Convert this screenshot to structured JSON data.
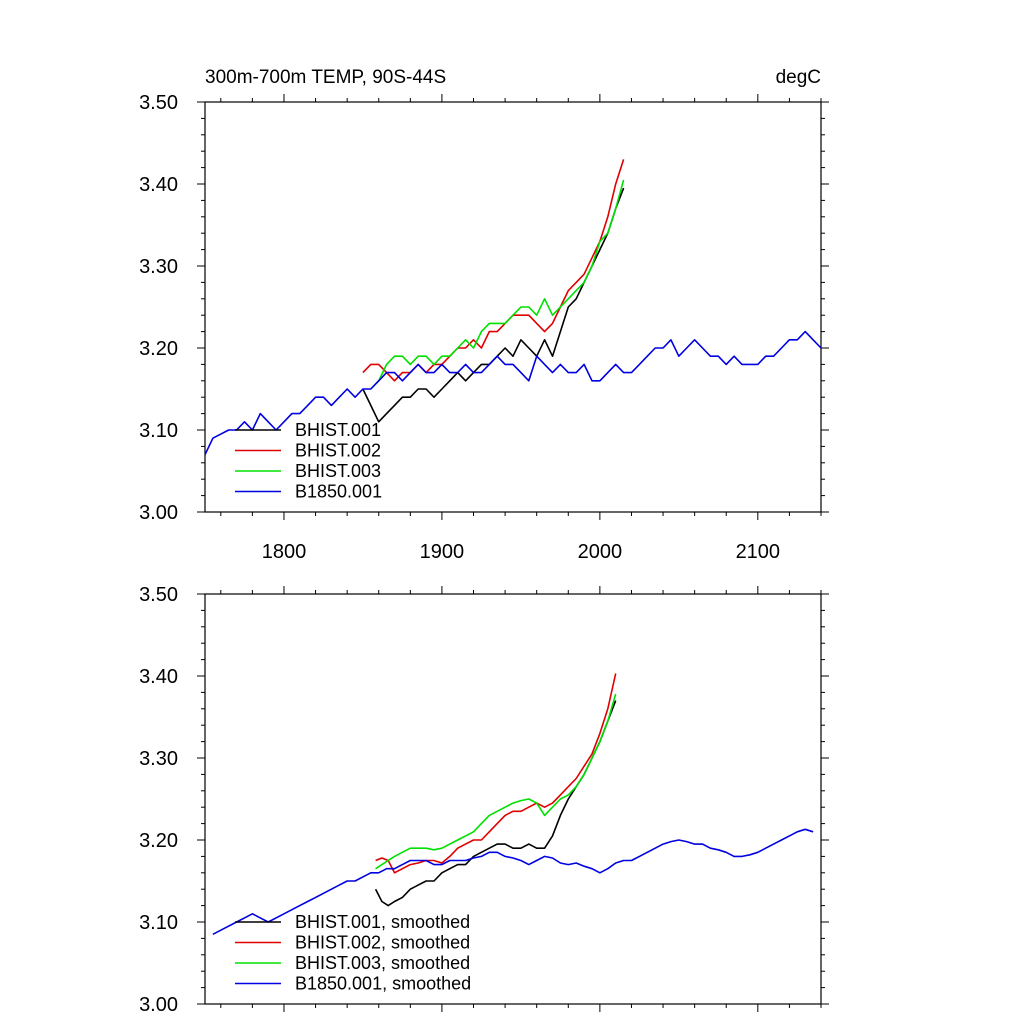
{
  "header": {
    "title": "300m-700m TEMP, 90S-44S",
    "units": "degC"
  },
  "colors": {
    "BHIST.001": "#000000",
    "BHIST.002": "#e00000",
    "BHIST.003": "#00e000",
    "B1850.001": "#0000e0"
  },
  "chart_data": [
    {
      "type": "line",
      "title": "300m-700m TEMP, 90S-44S",
      "units": "degC",
      "xlim": [
        1750,
        2140
      ],
      "ylim": [
        3.0,
        3.5
      ],
      "xticks": [
        1800,
        1900,
        2000,
        2100
      ],
      "xtick_labels": [
        "1800",
        "1900",
        "2000",
        "2100"
      ],
      "yticks": [
        3.0,
        3.1,
        3.2,
        3.3,
        3.4,
        3.5
      ],
      "ytick_labels": [
        "3.00",
        "3.10",
        "3.20",
        "3.30",
        "3.40",
        "3.50"
      ],
      "grid": false,
      "legend_position": "bottom-left",
      "series": [
        {
          "name": "BHIST.001",
          "color": "#000000",
          "x": [
            1850,
            1855,
            1860,
            1865,
            1870,
            1875,
            1880,
            1885,
            1890,
            1895,
            1900,
            1905,
            1910,
            1915,
            1920,
            1925,
            1930,
            1935,
            1940,
            1945,
            1950,
            1955,
            1960,
            1965,
            1970,
            1975,
            1980,
            1985,
            1990,
            1995,
            2000,
            2005,
            2010,
            2015
          ],
          "y": [
            3.15,
            3.13,
            3.11,
            3.12,
            3.13,
            3.14,
            3.14,
            3.15,
            3.15,
            3.14,
            3.15,
            3.16,
            3.17,
            3.16,
            3.17,
            3.18,
            3.18,
            3.19,
            3.2,
            3.19,
            3.21,
            3.2,
            3.19,
            3.21,
            3.19,
            3.22,
            3.25,
            3.26,
            3.28,
            3.3,
            3.32,
            3.34,
            3.37,
            3.395
          ]
        },
        {
          "name": "BHIST.002",
          "color": "#e00000",
          "x": [
            1850,
            1855,
            1860,
            1865,
            1870,
            1875,
            1880,
            1885,
            1890,
            1895,
            1900,
            1905,
            1910,
            1915,
            1920,
            1925,
            1930,
            1935,
            1940,
            1945,
            1950,
            1955,
            1960,
            1965,
            1970,
            1975,
            1980,
            1985,
            1990,
            1995,
            2000,
            2005,
            2010,
            2015
          ],
          "y": [
            3.17,
            3.18,
            3.18,
            3.17,
            3.16,
            3.17,
            3.17,
            3.18,
            3.17,
            3.18,
            3.18,
            3.19,
            3.2,
            3.2,
            3.21,
            3.2,
            3.22,
            3.22,
            3.23,
            3.24,
            3.24,
            3.24,
            3.23,
            3.22,
            3.23,
            3.25,
            3.27,
            3.28,
            3.29,
            3.31,
            3.33,
            3.36,
            3.4,
            3.43
          ]
        },
        {
          "name": "BHIST.003",
          "color": "#00e000",
          "x": [
            1855,
            1860,
            1865,
            1870,
            1875,
            1880,
            1885,
            1890,
            1895,
            1900,
            1905,
            1910,
            1915,
            1920,
            1925,
            1930,
            1935,
            1940,
            1945,
            1950,
            1955,
            1960,
            1965,
            1970,
            1975,
            1980,
            1985,
            1990,
            1995,
            2000,
            2005,
            2010,
            2015
          ],
          "y": [
            3.15,
            3.16,
            3.18,
            3.19,
            3.19,
            3.18,
            3.19,
            3.19,
            3.18,
            3.19,
            3.19,
            3.2,
            3.21,
            3.2,
            3.22,
            3.23,
            3.23,
            3.23,
            3.24,
            3.25,
            3.25,
            3.24,
            3.26,
            3.24,
            3.25,
            3.26,
            3.27,
            3.28,
            3.3,
            3.33,
            3.34,
            3.37,
            3.405
          ]
        },
        {
          "name": "B1850.001",
          "color": "#0000e0",
          "x": [
            1750,
            1755,
            1760,
            1765,
            1770,
            1775,
            1780,
            1785,
            1790,
            1795,
            1800,
            1805,
            1810,
            1815,
            1820,
            1825,
            1830,
            1835,
            1840,
            1845,
            1850,
            1855,
            1860,
            1865,
            1870,
            1875,
            1880,
            1885,
            1890,
            1895,
            1900,
            1905,
            1910,
            1915,
            1920,
            1925,
            1930,
            1935,
            1940,
            1945,
            1950,
            1955,
            1960,
            1965,
            1970,
            1975,
            1980,
            1985,
            1990,
            1995,
            2000,
            2005,
            2010,
            2015,
            2020,
            2025,
            2030,
            2035,
            2040,
            2045,
            2050,
            2055,
            2060,
            2065,
            2070,
            2075,
            2080,
            2085,
            2090,
            2095,
            2100,
            2105,
            2110,
            2115,
            2120,
            2125,
            2130,
            2135,
            2140
          ],
          "y": [
            3.07,
            3.09,
            3.095,
            3.1,
            3.1,
            3.11,
            3.1,
            3.12,
            3.11,
            3.1,
            3.11,
            3.12,
            3.12,
            3.13,
            3.14,
            3.14,
            3.13,
            3.14,
            3.15,
            3.14,
            3.15,
            3.15,
            3.16,
            3.17,
            3.17,
            3.16,
            3.17,
            3.18,
            3.17,
            3.17,
            3.18,
            3.17,
            3.17,
            3.18,
            3.17,
            3.17,
            3.18,
            3.19,
            3.18,
            3.18,
            3.17,
            3.16,
            3.19,
            3.18,
            3.17,
            3.18,
            3.17,
            3.17,
            3.18,
            3.16,
            3.16,
            3.17,
            3.18,
            3.17,
            3.17,
            3.18,
            3.19,
            3.2,
            3.2,
            3.21,
            3.19,
            3.2,
            3.21,
            3.2,
            3.19,
            3.19,
            3.18,
            3.19,
            3.18,
            3.18,
            3.18,
            3.19,
            3.19,
            3.2,
            3.21,
            3.21,
            3.22,
            3.21,
            3.2
          ]
        }
      ]
    },
    {
      "type": "line",
      "xlim": [
        1750,
        2140
      ],
      "ylim": [
        3.0,
        3.5
      ],
      "yticks": [
        3.0,
        3.1,
        3.2,
        3.3,
        3.4,
        3.5
      ],
      "ytick_labels": [
        "3.00",
        "3.10",
        "3.20",
        "3.30",
        "3.40",
        "3.50"
      ],
      "grid": false,
      "legend_position": "bottom-left",
      "series": [
        {
          "name": "BHIST.001, smoothed",
          "color": "#000000",
          "x": [
            1858,
            1862,
            1866,
            1870,
            1875,
            1880,
            1885,
            1890,
            1895,
            1900,
            1905,
            1910,
            1915,
            1920,
            1925,
            1930,
            1935,
            1940,
            1945,
            1950,
            1955,
            1960,
            1965,
            1970,
            1975,
            1980,
            1985,
            1990,
            1995,
            2000,
            2005,
            2010
          ],
          "y": [
            3.14,
            3.125,
            3.12,
            3.125,
            3.13,
            3.14,
            3.145,
            3.15,
            3.15,
            3.16,
            3.165,
            3.17,
            3.17,
            3.18,
            3.185,
            3.19,
            3.195,
            3.195,
            3.19,
            3.19,
            3.195,
            3.19,
            3.19,
            3.205,
            3.23,
            3.25,
            3.265,
            3.28,
            3.3,
            3.32,
            3.345,
            3.37
          ]
        },
        {
          "name": "BHIST.002, smoothed",
          "color": "#e00000",
          "x": [
            1858,
            1862,
            1866,
            1870,
            1875,
            1880,
            1885,
            1890,
            1895,
            1900,
            1905,
            1910,
            1915,
            1920,
            1925,
            1930,
            1935,
            1940,
            1945,
            1950,
            1955,
            1960,
            1965,
            1970,
            1975,
            1980,
            1985,
            1990,
            1995,
            2000,
            2005,
            2010
          ],
          "y": [
            3.175,
            3.178,
            3.175,
            3.16,
            3.165,
            3.17,
            3.172,
            3.175,
            3.175,
            3.172,
            3.18,
            3.19,
            3.195,
            3.2,
            3.2,
            3.21,
            3.22,
            3.23,
            3.235,
            3.235,
            3.24,
            3.245,
            3.24,
            3.245,
            3.255,
            3.265,
            3.275,
            3.29,
            3.305,
            3.33,
            3.36,
            3.403
          ]
        },
        {
          "name": "BHIST.003, smoothed",
          "color": "#00e000",
          "x": [
            1858,
            1862,
            1866,
            1870,
            1875,
            1880,
            1885,
            1890,
            1895,
            1900,
            1905,
            1910,
            1915,
            1920,
            1925,
            1930,
            1935,
            1940,
            1945,
            1950,
            1955,
            1960,
            1965,
            1970,
            1975,
            1980,
            1985,
            1990,
            1995,
            2000,
            2005,
            2010
          ],
          "y": [
            3.165,
            3.17,
            3.175,
            3.18,
            3.185,
            3.19,
            3.19,
            3.19,
            3.188,
            3.19,
            3.195,
            3.2,
            3.205,
            3.21,
            3.22,
            3.23,
            3.235,
            3.24,
            3.245,
            3.248,
            3.25,
            3.245,
            3.23,
            3.24,
            3.25,
            3.255,
            3.265,
            3.28,
            3.3,
            3.32,
            3.345,
            3.378
          ]
        },
        {
          "name": "B1850.001, smoothed",
          "color": "#0000e0",
          "x": [
            1755,
            1760,
            1765,
            1770,
            1775,
            1780,
            1785,
            1790,
            1795,
            1800,
            1805,
            1810,
            1815,
            1820,
            1825,
            1830,
            1835,
            1840,
            1845,
            1850,
            1855,
            1860,
            1865,
            1870,
            1875,
            1880,
            1885,
            1890,
            1895,
            1900,
            1905,
            1910,
            1915,
            1920,
            1925,
            1930,
            1935,
            1940,
            1945,
            1950,
            1955,
            1960,
            1965,
            1970,
            1975,
            1980,
            1985,
            1990,
            1995,
            2000,
            2005,
            2010,
            2015,
            2020,
            2025,
            2030,
            2035,
            2040,
            2045,
            2050,
            2055,
            2060,
            2065,
            2070,
            2075,
            2080,
            2085,
            2090,
            2095,
            2100,
            2105,
            2110,
            2115,
            2120,
            2125,
            2130,
            2135
          ],
          "y": [
            3.085,
            3.09,
            3.095,
            3.1,
            3.105,
            3.11,
            3.105,
            3.1,
            3.105,
            3.11,
            3.115,
            3.12,
            3.125,
            3.13,
            3.135,
            3.14,
            3.145,
            3.15,
            3.15,
            3.155,
            3.16,
            3.16,
            3.165,
            3.165,
            3.17,
            3.175,
            3.175,
            3.175,
            3.17,
            3.17,
            3.175,
            3.175,
            3.175,
            3.178,
            3.18,
            3.185,
            3.185,
            3.18,
            3.178,
            3.175,
            3.17,
            3.175,
            3.18,
            3.178,
            3.172,
            3.17,
            3.172,
            3.168,
            3.165,
            3.16,
            3.165,
            3.172,
            3.175,
            3.175,
            3.18,
            3.185,
            3.19,
            3.195,
            3.198,
            3.2,
            3.198,
            3.195,
            3.195,
            3.19,
            3.188,
            3.185,
            3.18,
            3.18,
            3.182,
            3.185,
            3.19,
            3.195,
            3.2,
            3.205,
            3.21,
            3.213,
            3.21
          ]
        }
      ]
    }
  ]
}
